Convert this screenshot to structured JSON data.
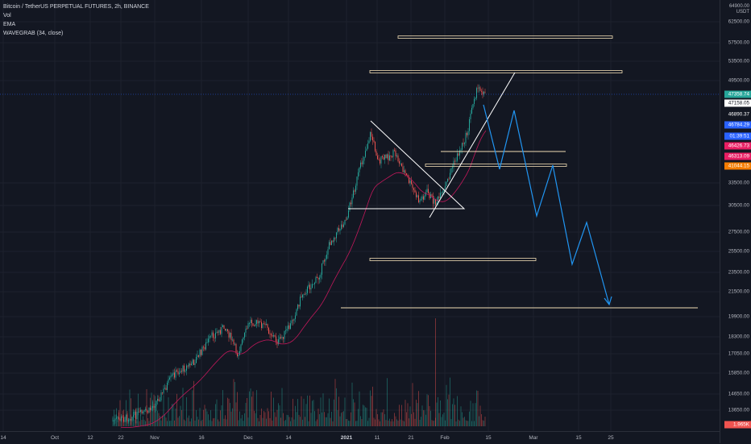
{
  "legend": {
    "symbol_line": "Bitcoin / TetherUS PERPETUAL FUTURES, 2h, BINANCE",
    "vol_label": "Vol",
    "ema_label": "EMA",
    "wavegrab_label": "WAVEGRAB (34, close)"
  },
  "axis": {
    "currency_top": "64900.00",
    "currency_unit": "USDT",
    "y_labels": [
      "62500.00",
      "57500.00",
      "53500.00",
      "49500.00",
      "33500.00",
      "30500.00",
      "27500.00",
      "25500.00",
      "23500.00",
      "21500.00",
      "19900.00",
      "18300.00",
      "17050.00",
      "15850.00",
      "14650.00",
      "13650.00"
    ],
    "x_labels": [
      "14",
      "Oct",
      "12",
      "22",
      "Nov",
      "16",
      "Dec",
      "14",
      "2021",
      "11",
      "21",
      "Feb",
      "15",
      "Mar",
      "15",
      "25"
    ]
  },
  "price_tags": [
    {
      "text": "47358.74",
      "bg": "#26a69a",
      "fg": "#ffffff"
    },
    {
      "text": "47158.05",
      "bg": "#ffffff",
      "fg": "#131722"
    },
    {
      "text": "46890.37",
      "bg": "#131722",
      "fg": "#ffffff"
    },
    {
      "text": "46784.29",
      "bg": "#2962ff",
      "fg": "#ffffff"
    },
    {
      "text": "01:39:51",
      "bg": "#2962ff",
      "fg": "#ffffff"
    },
    {
      "text": "46426.73",
      "bg": "#e91e63",
      "fg": "#ffffff"
    },
    {
      "text": "46313.09",
      "bg": "#e91e63",
      "fg": "#ffffff"
    },
    {
      "text": "41044.15",
      "bg": "#f57c00",
      "fg": "#ffffff"
    },
    {
      "text": "1.965K",
      "bg": "#ef5350",
      "fg": "#ffffff"
    }
  ],
  "colors": {
    "up": "#26a69a",
    "down": "#ef5350",
    "level": "#f0dcb4",
    "projection": "#2196f3",
    "ema": "#c2185b",
    "drawing": "#ffffff"
  },
  "chart_data": {
    "type": "candlestick",
    "symbol": "BTCUSDT PERP",
    "timeframe": "2h",
    "x_range": [
      "Sep 14 2020",
      "Mar 25 2021"
    ],
    "y_range": [
      13650,
      64900
    ],
    "annotations": {
      "levels": [
        58500,
        51500,
        41800,
        39800,
        24000,
        20200
      ],
      "projected_path": "down-zigzag",
      "patterns": [
        "descending triangle",
        "rising wedge line"
      ]
    }
  }
}
